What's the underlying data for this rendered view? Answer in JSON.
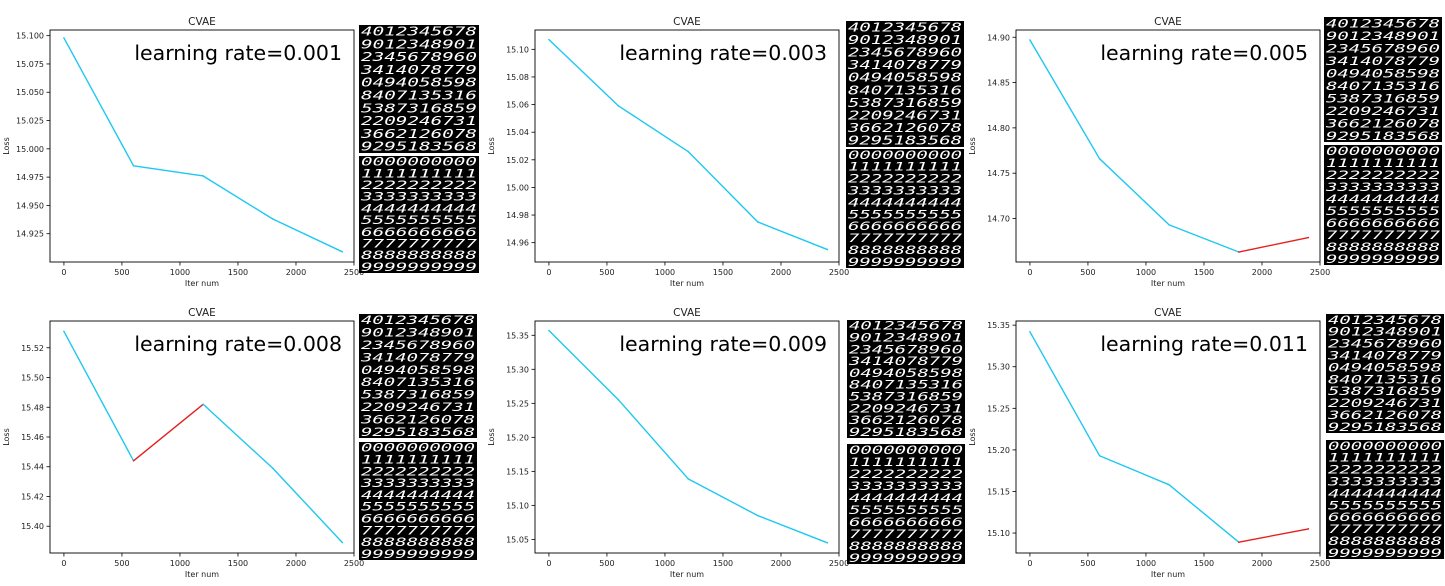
{
  "chart_data": [
    {
      "type": "line",
      "title": "CVAE",
      "annotation": "learning rate=0.001",
      "xlabel": "Iter num",
      "ylabel": "Loss",
      "x": [
        0,
        600,
        1200,
        1800,
        2400
      ],
      "y": [
        15.098,
        14.985,
        14.976,
        14.938,
        14.909
      ],
      "xlim": [
        -120,
        2500
      ],
      "ylim": [
        14.9,
        15.105
      ],
      "xticks": [
        0,
        500,
        1000,
        1500,
        2000,
        2500
      ],
      "yticks": [
        14.925,
        14.95,
        14.975,
        15.0,
        15.025,
        15.05,
        15.075,
        15.1
      ],
      "ytick_labels": [
        "14.925",
        "14.950",
        "14.975",
        "15.000",
        "15.025",
        "15.050",
        "15.075",
        "15.100"
      ],
      "segment_colors": [
        "#1ec8f0",
        "#1ec8f0",
        "#1ec8f0",
        "#1ec8f0"
      ],
      "annotation_position": "top-right"
    },
    {
      "type": "line",
      "title": "CVAE",
      "annotation": "learning rate=0.003",
      "xlabel": "Iter num",
      "ylabel": "Loss",
      "x": [
        0,
        600,
        1200,
        1800,
        2400
      ],
      "y": [
        15.107,
        15.059,
        15.026,
        14.975,
        14.955
      ],
      "xlim": [
        -120,
        2500
      ],
      "ylim": [
        14.946,
        15.114
      ],
      "xticks": [
        0,
        500,
        1000,
        1500,
        2000,
        2500
      ],
      "yticks": [
        14.96,
        14.98,
        15.0,
        15.02,
        15.04,
        15.06,
        15.08,
        15.1
      ],
      "ytick_labels": [
        "14.96",
        "14.98",
        "15.00",
        "15.02",
        "15.04",
        "15.06",
        "15.08",
        "15.10"
      ],
      "segment_colors": [
        "#1ec8f0",
        "#1ec8f0",
        "#1ec8f0",
        "#1ec8f0"
      ],
      "annotation_position": "top-right"
    },
    {
      "type": "line",
      "title": "CVAE",
      "annotation": "learning rate=0.005",
      "xlabel": "Iter num",
      "ylabel": "Loss",
      "x": [
        0,
        600,
        1200,
        1800,
        2400
      ],
      "y": [
        14.897,
        14.766,
        14.693,
        14.663,
        14.679
      ],
      "xlim": [
        -120,
        2500
      ],
      "ylim": [
        14.652,
        14.908
      ],
      "xticks": [
        0,
        500,
        1000,
        1500,
        2000,
        2500
      ],
      "yticks": [
        14.7,
        14.75,
        14.8,
        14.85,
        14.9
      ],
      "ytick_labels": [
        "14.70",
        "14.75",
        "14.80",
        "14.85",
        "14.90"
      ],
      "segment_colors": [
        "#1ec8f0",
        "#1ec8f0",
        "#1ec8f0",
        "#e62020"
      ],
      "annotation_position": "top-right"
    },
    {
      "type": "line",
      "title": "CVAE",
      "annotation": "learning rate=0.008",
      "xlabel": "Iter num",
      "ylabel": "Loss",
      "x": [
        0,
        600,
        1200,
        1800,
        2400
      ],
      "y": [
        15.531,
        15.444,
        15.482,
        15.439,
        15.389
      ],
      "xlim": [
        -120,
        2500
      ],
      "ylim": [
        15.382,
        15.538
      ],
      "xticks": [
        0,
        500,
        1000,
        1500,
        2000,
        2500
      ],
      "yticks": [
        15.4,
        15.42,
        15.44,
        15.46,
        15.48,
        15.5,
        15.52
      ],
      "ytick_labels": [
        "15.40",
        "15.42",
        "15.44",
        "15.46",
        "15.48",
        "15.50",
        "15.52"
      ],
      "segment_colors": [
        "#1ec8f0",
        "#e62020",
        "#1ec8f0",
        "#1ec8f0"
      ],
      "annotation_position": "top-right"
    },
    {
      "type": "line",
      "title": "CVAE",
      "annotation": "learning rate=0.009",
      "xlabel": "Iter num",
      "ylabel": "Loss",
      "x": [
        0,
        600,
        1200,
        1800,
        2400
      ],
      "y": [
        15.357,
        15.255,
        15.139,
        15.085,
        15.045
      ],
      "xlim": [
        -120,
        2500
      ],
      "ylim": [
        15.03,
        15.371
      ],
      "xticks": [
        0,
        500,
        1000,
        1500,
        2000,
        2500
      ],
      "yticks": [
        15.05,
        15.1,
        15.15,
        15.2,
        15.25,
        15.3,
        15.35
      ],
      "ytick_labels": [
        "15.05",
        "15.10",
        "15.15",
        "15.20",
        "15.25",
        "15.30",
        "15.35"
      ],
      "segment_colors": [
        "#1ec8f0",
        "#1ec8f0",
        "#1ec8f0",
        "#1ec8f0"
      ],
      "annotation_position": "top-right"
    },
    {
      "type": "line",
      "title": "CVAE",
      "annotation": "learning rate=0.011",
      "xlabel": "Iter num",
      "ylabel": "Loss",
      "x": [
        0,
        600,
        1200,
        1800,
        2400
      ],
      "y": [
        15.342,
        15.193,
        15.158,
        15.089,
        15.105
      ],
      "xlim": [
        -120,
        2500
      ],
      "ylim": [
        15.076,
        15.355
      ],
      "xticks": [
        0,
        500,
        1000,
        1500,
        2000,
        2500
      ],
      "yticks": [
        15.1,
        15.15,
        15.2,
        15.25,
        15.3,
        15.35
      ],
      "ytick_labels": [
        "15.10",
        "15.15",
        "15.20",
        "15.25",
        "15.30",
        "15.35"
      ],
      "segment_colors": [
        "#1ec8f0",
        "#1ec8f0",
        "#1ec8f0",
        "#e62020"
      ],
      "annotation_position": "top-right"
    }
  ],
  "digit_grids": {
    "top_rows": [
      "4012345678",
      "9012348901",
      "2345678960",
      "3414078779",
      "0494058598",
      "8407135316",
      "5387316859",
      "2209246731",
      "3662126078",
      "9295183568"
    ],
    "bottom_rows": [
      "0000000000",
      "1111111111",
      "2222222222",
      "3333333333",
      "4444444444",
      "5555555555",
      "6666666666",
      "7777777777",
      "8888888888",
      "9999999999"
    ]
  },
  "colors": {
    "line": "#1ec8f0",
    "increase": "#e62020",
    "digit_background": "#000000",
    "digit_ink": "#ffffff"
  }
}
